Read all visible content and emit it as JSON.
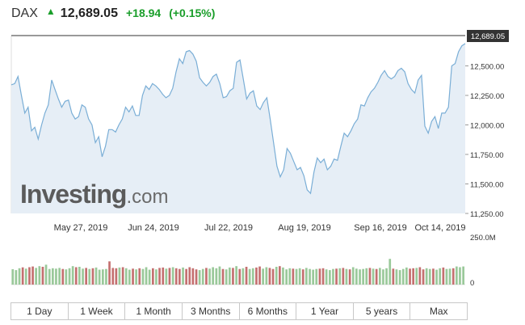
{
  "header": {
    "symbol": "DAX",
    "price": "12,689.05",
    "change": "+18.94",
    "change_pct": "(+0.15%)",
    "direction_icon": "up-arrow-icon",
    "up_color": "#1a9e2a"
  },
  "watermark": {
    "brand": "Investing",
    "domain": ".com"
  },
  "ranges": [
    "1 Day",
    "1 Week",
    "1 Month",
    "3 Months",
    "6 Months",
    "1 Year",
    "5 years",
    "Max"
  ],
  "colors": {
    "line": "#7aaed6",
    "area": "#e6eef6",
    "vol_up": "#9ac99a",
    "vol_down": "#c47070",
    "last_line": "#333333"
  },
  "chart_data": {
    "type": "area",
    "x_ticks": [
      "May 27, 2019",
      "Jun 24, 2019",
      "Jul 22, 2019",
      "Aug 19, 2019",
      "Sep 16, 2019",
      "Oct 14, 2019"
    ],
    "y_ticks": [
      "12,500.00",
      "12,250.00",
      "12,000.00",
      "11,750.00",
      "11,500.00",
      "11,250.00"
    ],
    "ylim": [
      11250,
      12750
    ],
    "last_value_label": "12,689.05",
    "volume_tick_labels": [
      "250.0M",
      "0"
    ],
    "volume_ylim": [
      0,
      250
    ],
    "price": [
      12340,
      12350,
      12410,
      12250,
      12100,
      12150,
      11950,
      11980,
      11880,
      12000,
      12100,
      12170,
      12380,
      12300,
      12220,
      12150,
      12200,
      12210,
      12100,
      12050,
      12070,
      12170,
      12150,
      12050,
      12000,
      11850,
      11900,
      11730,
      11820,
      11960,
      11960,
      11940,
      12000,
      12050,
      12150,
      12110,
      12160,
      12080,
      12080,
      12250,
      12330,
      12300,
      12350,
      12330,
      12300,
      12260,
      12230,
      12250,
      12310,
      12450,
      12560,
      12520,
      12620,
      12630,
      12600,
      12540,
      12400,
      12360,
      12330,
      12360,
      12410,
      12430,
      12350,
      12230,
      12240,
      12290,
      12310,
      12530,
      12550,
      12390,
      12220,
      12270,
      12290,
      12160,
      12130,
      12190,
      12230,
      12050,
      11850,
      11650,
      11560,
      11620,
      11800,
      11760,
      11690,
      11620,
      11640,
      11570,
      11450,
      11420,
      11600,
      11720,
      11680,
      11710,
      11620,
      11650,
      11710,
      11700,
      11820,
      11930,
      11900,
      11950,
      12010,
      12050,
      12170,
      12160,
      12230,
      12280,
      12310,
      12360,
      12420,
      12460,
      12410,
      12390,
      12410,
      12460,
      12480,
      12450,
      12350,
      12300,
      12270,
      12380,
      12420,
      11990,
      11930,
      12030,
      12070,
      11970,
      12100,
      12100,
      12150,
      12500,
      12520,
      12620,
      12670,
      12689
    ],
    "volume": [
      [
        85,
        1
      ],
      [
        80,
        1
      ],
      [
        90,
        1
      ],
      [
        95,
        0
      ],
      [
        88,
        1
      ],
      [
        96,
        0
      ],
      [
        100,
        0
      ],
      [
        92,
        1
      ],
      [
        102,
        1
      ],
      [
        98,
        0
      ],
      [
        110,
        1
      ],
      [
        86,
        1
      ],
      [
        90,
        1
      ],
      [
        88,
        1
      ],
      [
        92,
        1
      ],
      [
        86,
        0
      ],
      [
        84,
        1
      ],
      [
        90,
        1
      ],
      [
        102,
        1
      ],
      [
        96,
        0
      ],
      [
        98,
        1
      ],
      [
        88,
        1
      ],
      [
        92,
        0
      ],
      [
        86,
        1
      ],
      [
        90,
        0
      ],
      [
        94,
        1
      ],
      [
        82,
        1
      ],
      [
        84,
        1
      ],
      [
        86,
        1
      ],
      [
        128,
        0
      ],
      [
        92,
        0
      ],
      [
        90,
        0
      ],
      [
        94,
        1
      ],
      [
        96,
        0
      ],
      [
        90,
        1
      ],
      [
        82,
        1
      ],
      [
        88,
        0
      ],
      [
        84,
        1
      ],
      [
        90,
        0
      ],
      [
        86,
        1
      ],
      [
        96,
        1
      ],
      [
        82,
        1
      ],
      [
        90,
        0
      ],
      [
        84,
        1
      ],
      [
        92,
        0
      ],
      [
        94,
        0
      ],
      [
        88,
        1
      ],
      [
        92,
        0
      ],
      [
        96,
        1
      ],
      [
        90,
        0
      ],
      [
        86,
        0
      ],
      [
        94,
        1
      ],
      [
        86,
        0
      ],
      [
        96,
        0
      ],
      [
        90,
        0
      ],
      [
        84,
        0
      ],
      [
        80,
        1
      ],
      [
        86,
        1
      ],
      [
        92,
        0
      ],
      [
        88,
        1
      ],
      [
        96,
        1
      ],
      [
        90,
        1
      ],
      [
        100,
        1
      ],
      [
        86,
        0
      ],
      [
        84,
        1
      ],
      [
        94,
        1
      ],
      [
        92,
        0
      ],
      [
        102,
        1
      ],
      [
        86,
        0
      ],
      [
        90,
        1
      ],
      [
        98,
        0
      ],
      [
        86,
        1
      ],
      [
        90,
        1
      ],
      [
        94,
        0
      ],
      [
        100,
        0
      ],
      [
        88,
        1
      ],
      [
        96,
        1
      ],
      [
        92,
        0
      ],
      [
        86,
        0
      ],
      [
        98,
        1
      ],
      [
        102,
        0
      ],
      [
        94,
        1
      ],
      [
        84,
        1
      ],
      [
        90,
        1
      ],
      [
        88,
        0
      ],
      [
        86,
        1
      ],
      [
        90,
        1
      ],
      [
        84,
        0
      ],
      [
        92,
        1
      ],
      [
        86,
        1
      ],
      [
        82,
        1
      ],
      [
        86,
        1
      ],
      [
        88,
        0
      ],
      [
        90,
        0
      ],
      [
        84,
        1
      ],
      [
        80,
        1
      ],
      [
        86,
        1
      ],
      [
        88,
        0
      ],
      [
        90,
        1
      ],
      [
        92,
        0
      ],
      [
        86,
        1
      ],
      [
        84,
        0
      ],
      [
        96,
        1
      ],
      [
        88,
        1
      ],
      [
        84,
        1
      ],
      [
        86,
        1
      ],
      [
        90,
        1
      ],
      [
        92,
        0
      ],
      [
        88,
        1
      ],
      [
        86,
        0
      ],
      [
        92,
        1
      ],
      [
        84,
        1
      ],
      [
        90,
        1
      ],
      [
        142,
        1
      ],
      [
        88,
        0
      ],
      [
        84,
        1
      ],
      [
        80,
        1
      ],
      [
        86,
        1
      ],
      [
        94,
        1
      ],
      [
        88,
        0
      ],
      [
        90,
        0
      ],
      [
        92,
        1
      ],
      [
        96,
        0
      ],
      [
        84,
        0
      ],
      [
        90,
        1
      ],
      [
        86,
        1
      ],
      [
        88,
        0
      ],
      [
        82,
        1
      ],
      [
        90,
        1
      ],
      [
        94,
        0
      ],
      [
        86,
        1
      ],
      [
        88,
        1
      ],
      [
        90,
        0
      ],
      [
        100,
        1
      ],
      [
        96,
        1
      ],
      [
        100,
        1
      ]
    ]
  }
}
